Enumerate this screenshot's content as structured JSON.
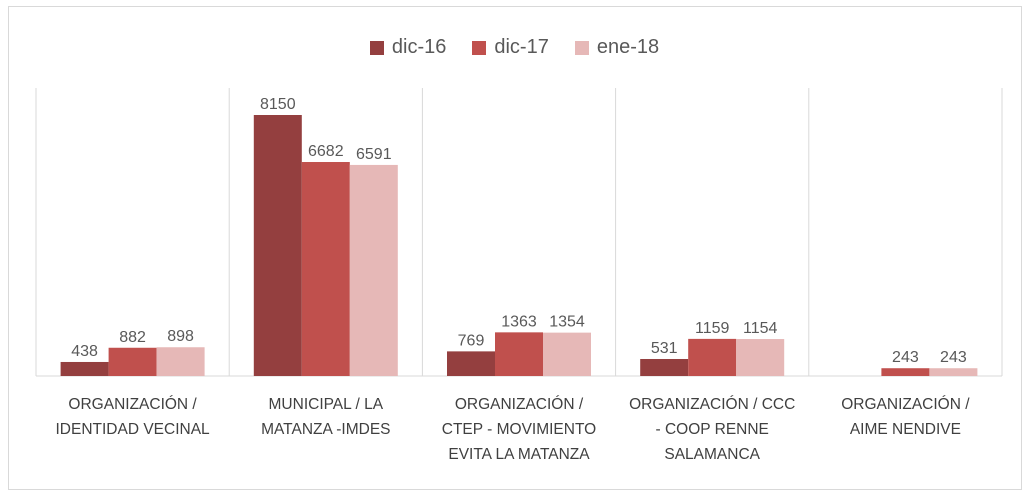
{
  "chart_data": {
    "type": "bar",
    "categories": [
      [
        "ORGANIZACIÓN /",
        "IDENTIDAD VECINAL"
      ],
      [
        "MUNICIPAL / LA",
        "MATANZA -IMDES"
      ],
      [
        "ORGANIZACIÓN /",
        "CTEP - MOVIMIENTO",
        "EVITA LA MATANZA"
      ],
      [
        "ORGANIZACIÓN / CCC",
        "- COOP RENNE",
        "SALAMANCA"
      ],
      [
        "ORGANIZACIÓN /",
        "AIME NENDIVE"
      ]
    ],
    "series": [
      {
        "name": "dic-16",
        "color": "#943f3f",
        "values": [
          438,
          8150,
          769,
          531,
          null
        ],
        "labels": [
          "438",
          "8150",
          "769",
          "531",
          ""
        ]
      },
      {
        "name": "dic-17",
        "color": "#c0504d",
        "values": [
          882,
          6682,
          1363,
          1159,
          243
        ],
        "labels": [
          "882",
          "6682",
          "1363",
          "1159",
          "243"
        ]
      },
      {
        "name": "ene-18",
        "color": "#e6b8b7",
        "values": [
          898,
          6591,
          1354,
          1154,
          243
        ],
        "labels": [
          "898",
          "6591",
          "1354",
          "1154",
          "243"
        ]
      }
    ],
    "ylim": [
      0,
      9000
    ],
    "legend_position": "top-center",
    "grid": false,
    "category_dividers": true
  }
}
